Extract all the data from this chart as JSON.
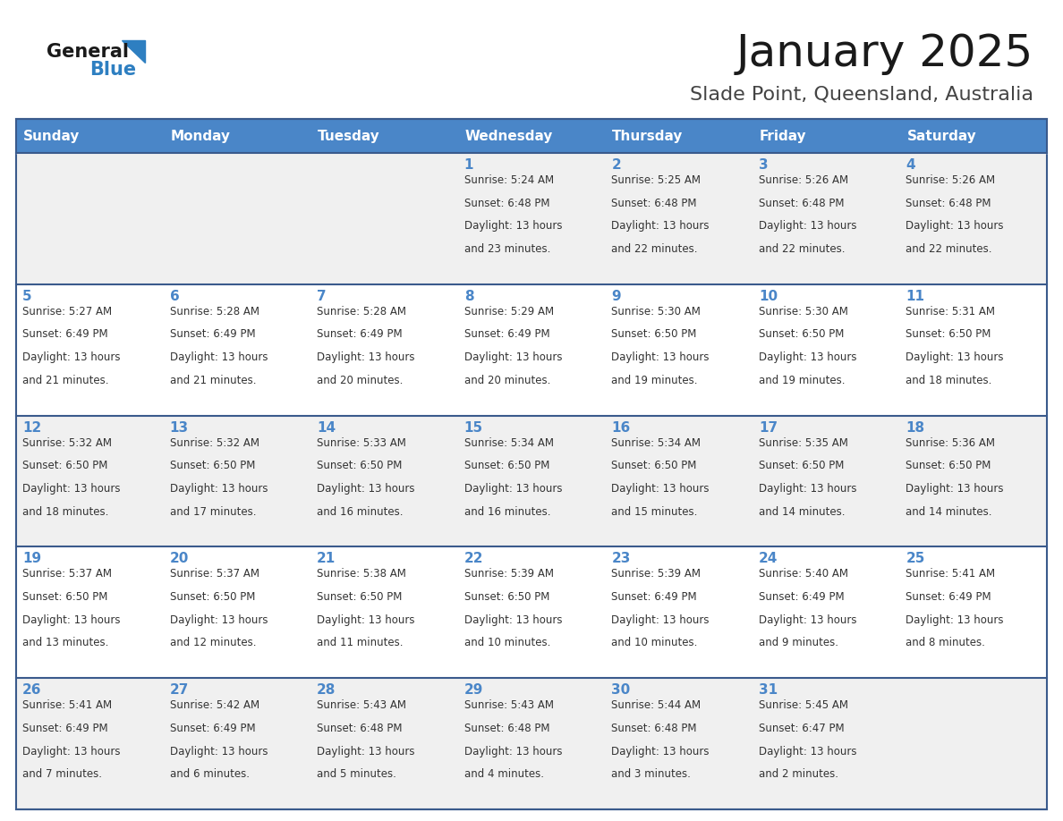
{
  "title": "January 2025",
  "subtitle": "Slade Point, Queensland, Australia",
  "days_of_week": [
    "Sunday",
    "Monday",
    "Tuesday",
    "Wednesday",
    "Thursday",
    "Friday",
    "Saturday"
  ],
  "header_bg_color": "#4A86C8",
  "header_text_color": "#FFFFFF",
  "cell_bg_even": "#F0F0F0",
  "cell_bg_odd": "#FFFFFF",
  "cell_border_color": "#3A5A8C",
  "day_number_color": "#4A86C8",
  "cell_text_color": "#333333",
  "title_color": "#1A1A1A",
  "subtitle_color": "#444444",
  "logo_general_color": "#1A1A1A",
  "logo_blue_color": "#2E7FC1",
  "calendar_data": [
    {
      "day": 1,
      "col": 3,
      "row": 0,
      "sunrise": "5:24 AM",
      "sunset": "6:48 PM",
      "daylight": "13 hours and 23 minutes."
    },
    {
      "day": 2,
      "col": 4,
      "row": 0,
      "sunrise": "5:25 AM",
      "sunset": "6:48 PM",
      "daylight": "13 hours and 22 minutes."
    },
    {
      "day": 3,
      "col": 5,
      "row": 0,
      "sunrise": "5:26 AM",
      "sunset": "6:48 PM",
      "daylight": "13 hours and 22 minutes."
    },
    {
      "day": 4,
      "col": 6,
      "row": 0,
      "sunrise": "5:26 AM",
      "sunset": "6:48 PM",
      "daylight": "13 hours and 22 minutes."
    },
    {
      "day": 5,
      "col": 0,
      "row": 1,
      "sunrise": "5:27 AM",
      "sunset": "6:49 PM",
      "daylight": "13 hours and 21 minutes."
    },
    {
      "day": 6,
      "col": 1,
      "row": 1,
      "sunrise": "5:28 AM",
      "sunset": "6:49 PM",
      "daylight": "13 hours and 21 minutes."
    },
    {
      "day": 7,
      "col": 2,
      "row": 1,
      "sunrise": "5:28 AM",
      "sunset": "6:49 PM",
      "daylight": "13 hours and 20 minutes."
    },
    {
      "day": 8,
      "col": 3,
      "row": 1,
      "sunrise": "5:29 AM",
      "sunset": "6:49 PM",
      "daylight": "13 hours and 20 minutes."
    },
    {
      "day": 9,
      "col": 4,
      "row": 1,
      "sunrise": "5:30 AM",
      "sunset": "6:50 PM",
      "daylight": "13 hours and 19 minutes."
    },
    {
      "day": 10,
      "col": 5,
      "row": 1,
      "sunrise": "5:30 AM",
      "sunset": "6:50 PM",
      "daylight": "13 hours and 19 minutes."
    },
    {
      "day": 11,
      "col": 6,
      "row": 1,
      "sunrise": "5:31 AM",
      "sunset": "6:50 PM",
      "daylight": "13 hours and 18 minutes."
    },
    {
      "day": 12,
      "col": 0,
      "row": 2,
      "sunrise": "5:32 AM",
      "sunset": "6:50 PM",
      "daylight": "13 hours and 18 minutes."
    },
    {
      "day": 13,
      "col": 1,
      "row": 2,
      "sunrise": "5:32 AM",
      "sunset": "6:50 PM",
      "daylight": "13 hours and 17 minutes."
    },
    {
      "day": 14,
      "col": 2,
      "row": 2,
      "sunrise": "5:33 AM",
      "sunset": "6:50 PM",
      "daylight": "13 hours and 16 minutes."
    },
    {
      "day": 15,
      "col": 3,
      "row": 2,
      "sunrise": "5:34 AM",
      "sunset": "6:50 PM",
      "daylight": "13 hours and 16 minutes."
    },
    {
      "day": 16,
      "col": 4,
      "row": 2,
      "sunrise": "5:34 AM",
      "sunset": "6:50 PM",
      "daylight": "13 hours and 15 minutes."
    },
    {
      "day": 17,
      "col": 5,
      "row": 2,
      "sunrise": "5:35 AM",
      "sunset": "6:50 PM",
      "daylight": "13 hours and 14 minutes."
    },
    {
      "day": 18,
      "col": 6,
      "row": 2,
      "sunrise": "5:36 AM",
      "sunset": "6:50 PM",
      "daylight": "13 hours and 14 minutes."
    },
    {
      "day": 19,
      "col": 0,
      "row": 3,
      "sunrise": "5:37 AM",
      "sunset": "6:50 PM",
      "daylight": "13 hours and 13 minutes."
    },
    {
      "day": 20,
      "col": 1,
      "row": 3,
      "sunrise": "5:37 AM",
      "sunset": "6:50 PM",
      "daylight": "13 hours and 12 minutes."
    },
    {
      "day": 21,
      "col": 2,
      "row": 3,
      "sunrise": "5:38 AM",
      "sunset": "6:50 PM",
      "daylight": "13 hours and 11 minutes."
    },
    {
      "day": 22,
      "col": 3,
      "row": 3,
      "sunrise": "5:39 AM",
      "sunset": "6:50 PM",
      "daylight": "13 hours and 10 minutes."
    },
    {
      "day": 23,
      "col": 4,
      "row": 3,
      "sunrise": "5:39 AM",
      "sunset": "6:49 PM",
      "daylight": "13 hours and 10 minutes."
    },
    {
      "day": 24,
      "col": 5,
      "row": 3,
      "sunrise": "5:40 AM",
      "sunset": "6:49 PM",
      "daylight": "13 hours and 9 minutes."
    },
    {
      "day": 25,
      "col": 6,
      "row": 3,
      "sunrise": "5:41 AM",
      "sunset": "6:49 PM",
      "daylight": "13 hours and 8 minutes."
    },
    {
      "day": 26,
      "col": 0,
      "row": 4,
      "sunrise": "5:41 AM",
      "sunset": "6:49 PM",
      "daylight": "13 hours and 7 minutes."
    },
    {
      "day": 27,
      "col": 1,
      "row": 4,
      "sunrise": "5:42 AM",
      "sunset": "6:49 PM",
      "daylight": "13 hours and 6 minutes."
    },
    {
      "day": 28,
      "col": 2,
      "row": 4,
      "sunrise": "5:43 AM",
      "sunset": "6:48 PM",
      "daylight": "13 hours and 5 minutes."
    },
    {
      "day": 29,
      "col": 3,
      "row": 4,
      "sunrise": "5:43 AM",
      "sunset": "6:48 PM",
      "daylight": "13 hours and 4 minutes."
    },
    {
      "day": 30,
      "col": 4,
      "row": 4,
      "sunrise": "5:44 AM",
      "sunset": "6:48 PM",
      "daylight": "13 hours and 3 minutes."
    },
    {
      "day": 31,
      "col": 5,
      "row": 4,
      "sunrise": "5:45 AM",
      "sunset": "6:47 PM",
      "daylight": "13 hours and 2 minutes."
    }
  ]
}
